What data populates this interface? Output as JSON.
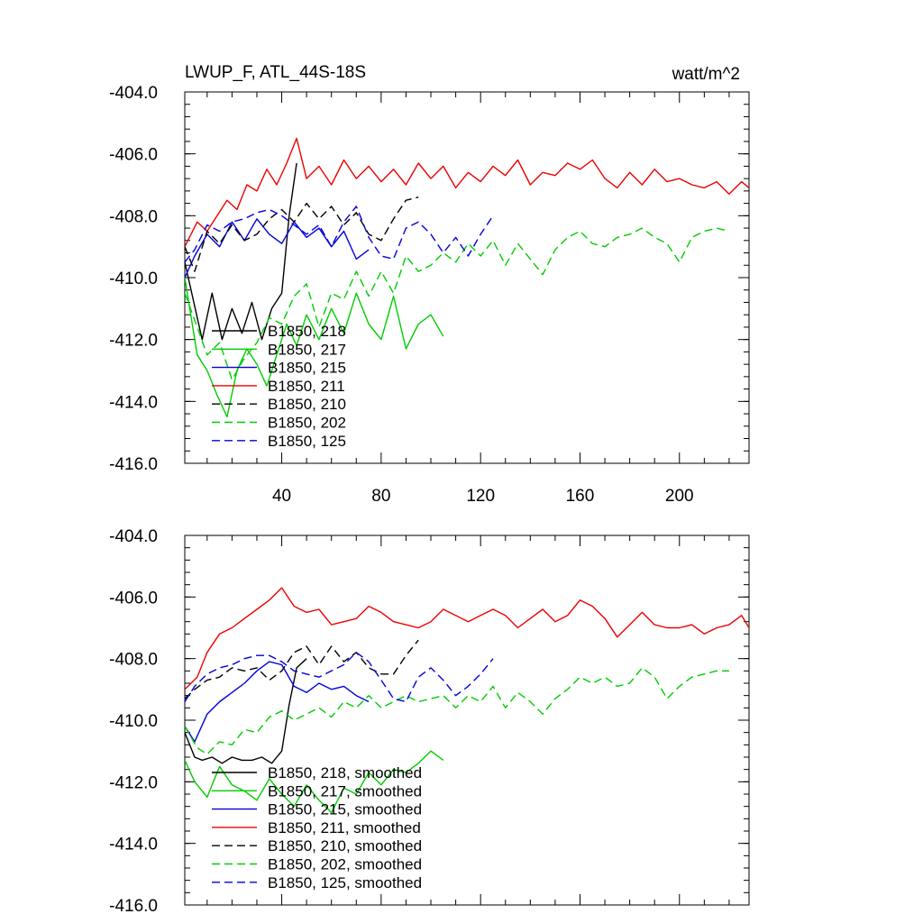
{
  "chart_data": [
    {
      "type": "line",
      "title": "LWUP_F, ATL_44S-18S",
      "units": "watt/m^2",
      "xlim": [
        1,
        228
      ],
      "ylim": [
        -416,
        -404
      ],
      "x_ticks": [
        40,
        80,
        120,
        160,
        200
      ],
      "y_ticks": [
        -404,
        -406,
        -408,
        -410,
        -412,
        -414,
        -416
      ],
      "y_tick_labels": [
        "-404.0",
        "-406.0",
        "-408.0",
        "-410.0",
        "-412.0",
        "-414.0",
        "-416.0"
      ],
      "legend": "lower-left",
      "series": [
        {
          "name": "B1850, 218",
          "color": "#000000",
          "dashed": false,
          "x": [
            1,
            8,
            12,
            16,
            20,
            24,
            28,
            32,
            36,
            40,
            43,
            46
          ],
          "y": [
            -409.5,
            -412,
            -410.5,
            -412,
            -411,
            -411.8,
            -410.8,
            -412,
            -411,
            -410.5,
            -408,
            -406.3
          ]
        },
        {
          "name": "B1850, 217",
          "color": "#00cc00",
          "dashed": false,
          "x": [
            1,
            6,
            10,
            14,
            18,
            22,
            26,
            30,
            34,
            38,
            42,
            46,
            50,
            55,
            60,
            65,
            70,
            75,
            80,
            85,
            90,
            95,
            100,
            105
          ],
          "y": [
            -410,
            -412.5,
            -413,
            -413.8,
            -414.5,
            -413,
            -412.3,
            -412.8,
            -413.5,
            -412.5,
            -411.5,
            -412.2,
            -411.2,
            -412,
            -411,
            -411.8,
            -410.5,
            -411.5,
            -412,
            -410.6,
            -412.3,
            -411.5,
            -411.2,
            -411.9
          ]
        },
        {
          "name": "B1850, 215",
          "color": "#0000dd",
          "dashed": false,
          "x": [
            1,
            5,
            10,
            15,
            20,
            25,
            30,
            35,
            40,
            45,
            50,
            55,
            60,
            65,
            70,
            75
          ],
          "y": [
            -410,
            -409.3,
            -408.6,
            -409,
            -408.2,
            -408.8,
            -408.1,
            -408.6,
            -408.9,
            -408.2,
            -408.7,
            -408.4,
            -409,
            -408.5,
            -409.4,
            -409.1
          ]
        },
        {
          "name": "B1850, 211",
          "color": "#ee0000",
          "dashed": false,
          "x": [
            1,
            6,
            10,
            14,
            18,
            22,
            26,
            30,
            34,
            38,
            42,
            46,
            50,
            55,
            60,
            65,
            70,
            75,
            80,
            85,
            90,
            95,
            100,
            105,
            110,
            115,
            120,
            125,
            130,
            135,
            140,
            145,
            150,
            155,
            160,
            165,
            170,
            175,
            180,
            185,
            190,
            195,
            200,
            205,
            210,
            215,
            220,
            225,
            228
          ],
          "y": [
            -409,
            -408.2,
            -408.5,
            -408,
            -407.5,
            -407.8,
            -407,
            -407.2,
            -406.5,
            -407,
            -406.3,
            -405.5,
            -406.8,
            -406.4,
            -407,
            -406.2,
            -406.8,
            -406.4,
            -406.9,
            -406.5,
            -407,
            -406.3,
            -406.8,
            -406.4,
            -407.1,
            -406.6,
            -406.9,
            -406.4,
            -406.7,
            -406.2,
            -407,
            -406.6,
            -406.7,
            -406.3,
            -406.5,
            -406.2,
            -406.8,
            -407.1,
            -406.6,
            -407,
            -406.5,
            -406.9,
            -406.8,
            -407,
            -407.1,
            -406.9,
            -407.3,
            -406.9,
            -407.1
          ]
        },
        {
          "name": "B1850, 210",
          "color": "#000000",
          "dashed": true,
          "x": [
            1,
            5,
            10,
            15,
            20,
            25,
            30,
            35,
            40,
            45,
            50,
            55,
            60,
            65,
            70,
            75,
            80,
            85,
            90,
            95
          ],
          "y": [
            -409,
            -409.8,
            -408.5,
            -408.9,
            -408.3,
            -408.8,
            -408.6,
            -408.1,
            -407.8,
            -408.2,
            -407.6,
            -408.1,
            -407.7,
            -408.3,
            -407.9,
            -408.6,
            -408.8,
            -408.1,
            -407.5,
            -407.4
          ]
        },
        {
          "name": "B1850, 202",
          "color": "#00cc00",
          "dashed": true,
          "x": [
            1,
            6,
            10,
            15,
            20,
            25,
            30,
            35,
            40,
            45,
            50,
            55,
            60,
            65,
            70,
            75,
            80,
            85,
            90,
            95,
            100,
            105,
            110,
            115,
            120,
            125,
            130,
            135,
            140,
            145,
            150,
            155,
            160,
            165,
            170,
            175,
            180,
            185,
            190,
            195,
            200,
            205,
            210,
            215,
            220
          ],
          "y": [
            -410.5,
            -411.6,
            -412.5,
            -412.1,
            -413.3,
            -412.6,
            -412.1,
            -411.3,
            -411.5,
            -410.6,
            -410.2,
            -411.6,
            -410.5,
            -410.7,
            -409.8,
            -410.6,
            -409.8,
            -410.5,
            -409.3,
            -409.8,
            -409.6,
            -409.2,
            -409.5,
            -408.9,
            -409.3,
            -408.8,
            -409.6,
            -408.9,
            -409.4,
            -409.9,
            -409.1,
            -408.7,
            -408.5,
            -408.9,
            -409,
            -408.7,
            -408.6,
            -408.4,
            -408.7,
            -408.9,
            -409.5,
            -408.7,
            -408.5,
            -408.4,
            -408.5
          ]
        },
        {
          "name": "B1850, 125",
          "color": "#0000dd",
          "dashed": true,
          "x": [
            1,
            5,
            10,
            15,
            20,
            25,
            30,
            35,
            40,
            45,
            50,
            55,
            60,
            65,
            70,
            75,
            80,
            85,
            90,
            95,
            100,
            105,
            110,
            115,
            120,
            125
          ],
          "y": [
            -409.5,
            -409.1,
            -408.3,
            -408.5,
            -408.2,
            -408.1,
            -407.9,
            -407.8,
            -408,
            -408.3,
            -408.6,
            -408.3,
            -409,
            -408.2,
            -407.7,
            -408.7,
            -409.3,
            -409.4,
            -408.4,
            -408.2,
            -408.6,
            -409.2,
            -408.7,
            -409.3,
            -408.6,
            -408
          ]
        }
      ]
    },
    {
      "type": "line",
      "xlim": [
        1,
        228
      ],
      "ylim": [
        -416,
        -404
      ],
      "x_ticks": [
        40,
        80,
        120,
        160,
        200
      ],
      "y_ticks": [
        -404,
        -406,
        -408,
        -410,
        -412,
        -414,
        -416
      ],
      "y_tick_labels": [
        "-404.0",
        "-406.0",
        "-408.0",
        "-410.0",
        "-412.0",
        "-414.0",
        "-416.0"
      ],
      "legend": "lower-left",
      "series": [
        {
          "name": "B1850, 218, smoothed",
          "color": "#000000",
          "dashed": false,
          "x": [
            1,
            5,
            8,
            12,
            16,
            20,
            24,
            28,
            32,
            36,
            40,
            43,
            46,
            50
          ],
          "y": [
            -410.4,
            -411.2,
            -411.3,
            -411.2,
            -411.4,
            -411.2,
            -411.3,
            -411.3,
            -411.2,
            -411.4,
            -411,
            -409.5,
            -408.3,
            -408
          ]
        },
        {
          "name": "B1850, 217, smoothed",
          "color": "#00cc00",
          "dashed": false,
          "x": [
            1,
            5,
            10,
            15,
            20,
            25,
            30,
            35,
            40,
            45,
            50,
            55,
            60,
            65,
            70,
            75,
            80,
            85,
            90,
            95,
            100,
            105
          ],
          "y": [
            -411.3,
            -412,
            -412.5,
            -411.5,
            -412.1,
            -412.3,
            -412.6,
            -411.9,
            -412.4,
            -412.8,
            -412.1,
            -412.6,
            -413,
            -412.2,
            -412.4,
            -411.7,
            -412.1,
            -411.6,
            -411.7,
            -411.4,
            -411,
            -411.3
          ]
        },
        {
          "name": "B1850, 215, smoothed",
          "color": "#0000dd",
          "dashed": false,
          "x": [
            1,
            5,
            10,
            15,
            20,
            25,
            30,
            35,
            40,
            45,
            50,
            55,
            60,
            65,
            70,
            75
          ],
          "y": [
            -410.2,
            -410.7,
            -409.8,
            -409.4,
            -409.1,
            -408.8,
            -408.4,
            -408.1,
            -408.2,
            -408.9,
            -409.1,
            -408.8,
            -409,
            -408.9,
            -409.2,
            -409.4
          ]
        },
        {
          "name": "B1850, 211, smoothed",
          "color": "#ee0000",
          "dashed": false,
          "x": [
            1,
            6,
            10,
            15,
            20,
            25,
            30,
            35,
            40,
            45,
            50,
            55,
            60,
            65,
            70,
            75,
            80,
            85,
            90,
            95,
            100,
            105,
            110,
            115,
            120,
            125,
            130,
            135,
            140,
            145,
            150,
            155,
            160,
            165,
            170,
            175,
            180,
            185,
            190,
            195,
            200,
            205,
            210,
            215,
            220,
            225,
            228
          ],
          "y": [
            -409,
            -408.6,
            -407.8,
            -407.2,
            -407,
            -406.7,
            -406.4,
            -406.1,
            -405.7,
            -406.3,
            -406.5,
            -406.4,
            -406.9,
            -406.8,
            -406.7,
            -406.3,
            -406.5,
            -406.8,
            -406.9,
            -407,
            -406.8,
            -406.4,
            -406.6,
            -406.8,
            -406.6,
            -406.4,
            -406.6,
            -407,
            -406.7,
            -406.4,
            -406.8,
            -406.6,
            -406.1,
            -406.3,
            -406.7,
            -407.3,
            -406.9,
            -406.5,
            -406.9,
            -407,
            -407,
            -406.9,
            -407.2,
            -407,
            -406.9,
            -406.6,
            -407
          ]
        },
        {
          "name": "B1850, 210, smoothed",
          "color": "#000000",
          "dashed": true,
          "x": [
            1,
            5,
            10,
            15,
            20,
            25,
            30,
            35,
            40,
            45,
            50,
            55,
            60,
            65,
            70,
            75,
            80,
            85,
            90,
            95
          ],
          "y": [
            -409.3,
            -409,
            -408.7,
            -408.6,
            -408.3,
            -408.4,
            -408.3,
            -408.7,
            -408.4,
            -407.8,
            -407.6,
            -408.2,
            -407.6,
            -408.1,
            -407.8,
            -408.3,
            -408.5,
            -408.5,
            -407.9,
            -407.4
          ]
        },
        {
          "name": "B1850, 202, smoothed",
          "color": "#00cc00",
          "dashed": true,
          "x": [
            1,
            6,
            10,
            15,
            20,
            25,
            30,
            35,
            40,
            45,
            50,
            55,
            60,
            65,
            70,
            75,
            80,
            85,
            90,
            95,
            100,
            105,
            110,
            115,
            120,
            125,
            130,
            135,
            140,
            145,
            150,
            155,
            160,
            165,
            170,
            175,
            180,
            185,
            190,
            195,
            200,
            205,
            210,
            215,
            220
          ],
          "y": [
            -410.2,
            -410.9,
            -411.1,
            -410.7,
            -410.8,
            -410.3,
            -410.4,
            -409.9,
            -409.7,
            -410,
            -409.8,
            -409.6,
            -409.9,
            -409.4,
            -409.6,
            -409.2,
            -409.6,
            -409.4,
            -409.2,
            -409.4,
            -409.3,
            -409.2,
            -409.6,
            -409.2,
            -409.4,
            -408.9,
            -409.6,
            -409.1,
            -409.4,
            -409.8,
            -409.3,
            -409,
            -408.6,
            -408.8,
            -408.6,
            -408.9,
            -408.8,
            -408.3,
            -408.6,
            -409.3,
            -408.9,
            -408.6,
            -408.5,
            -408.4,
            -408.4
          ]
        },
        {
          "name": "B1850, 125, smoothed",
          "color": "#0000dd",
          "dashed": true,
          "x": [
            1,
            5,
            10,
            15,
            20,
            25,
            30,
            35,
            40,
            45,
            50,
            55,
            60,
            65,
            70,
            75,
            80,
            85,
            90,
            95,
            100,
            105,
            110,
            115,
            120,
            125
          ],
          "y": [
            -409.4,
            -408.9,
            -408.5,
            -408.3,
            -408.2,
            -408,
            -407.9,
            -407.9,
            -408.1,
            -408.4,
            -408.5,
            -408.6,
            -408.4,
            -408.2,
            -407.8,
            -408.1,
            -408.7,
            -409.3,
            -409.4,
            -408.6,
            -408.3,
            -408.7,
            -409.2,
            -408.9,
            -408.5,
            -408
          ]
        }
      ]
    }
  ]
}
